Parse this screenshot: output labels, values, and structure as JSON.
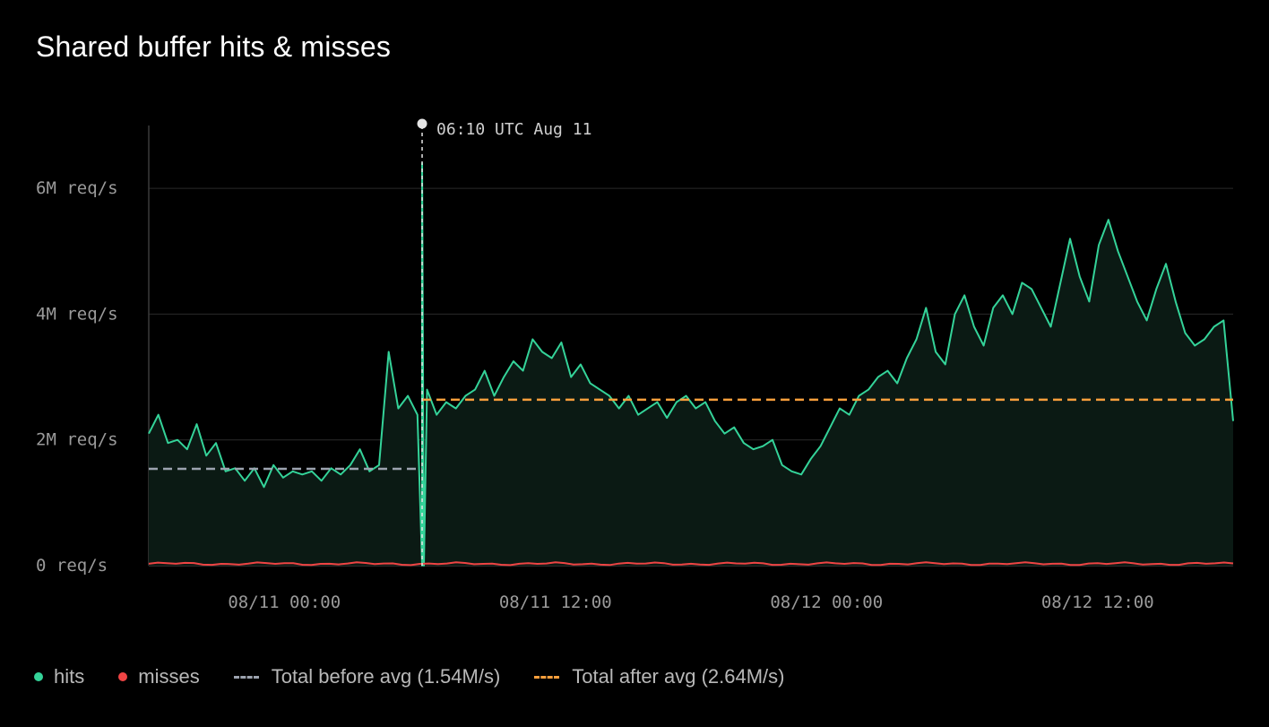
{
  "title": "Shared buffer hits & misses",
  "colors": {
    "background": "#000000",
    "hits": "#34d399",
    "hits_fill": "#0b1a14",
    "misses": "#ef4444",
    "before_avg": "#9ca3af",
    "after_avg": "#fb9f3c",
    "grid": "#2a2a2a",
    "axis_text": "#9a9a9a"
  },
  "legend": {
    "hits": "hits",
    "misses": "misses",
    "before_avg": "Total before avg (1.54M/s)",
    "after_avg": "Total after avg (2.64M/s)"
  },
  "marker": {
    "label": "06:10 UTC Aug 11"
  },
  "chart_data": {
    "type": "area",
    "title": "Shared buffer hits & misses",
    "x_unit": "hours since 08/10 12:00 UTC",
    "x_start": 0,
    "x_end": 48,
    "x_ticks": [
      {
        "x": 6,
        "label": "08/11 00:00"
      },
      {
        "x": 18,
        "label": "08/11 12:00"
      },
      {
        "x": 30,
        "label": "08/12 00:00"
      },
      {
        "x": 42,
        "label": "08/12 12:00"
      }
    ],
    "y_ticks": [
      {
        "y": 0,
        "label": "0 req/s"
      },
      {
        "y": 2000000,
        "label": "2M req/s"
      },
      {
        "y": 4000000,
        "label": "4M req/s"
      },
      {
        "y": 6000000,
        "label": "6M req/s"
      }
    ],
    "ylim": [
      0,
      7000000
    ],
    "marker_x": 12.1,
    "series": [
      {
        "name": "hits",
        "step_hours": 0.5,
        "values_m": [
          2.1,
          2.4,
          1.95,
          2.0,
          1.85,
          2.25,
          1.75,
          1.95,
          1.5,
          1.55,
          1.35,
          1.55,
          1.25,
          1.6,
          1.4,
          1.5,
          1.45,
          1.5,
          1.35,
          1.55,
          1.45,
          1.6,
          1.85,
          1.5,
          1.6,
          3.4,
          2.5,
          2.7,
          2.4,
          2.8,
          2.4,
          2.6,
          2.5,
          2.7,
          2.8,
          3.1,
          2.7,
          3.0,
          3.25,
          3.1,
          3.6,
          3.4,
          3.3,
          3.55,
          3.0,
          3.2,
          2.9,
          2.8,
          2.7,
          2.5,
          2.7,
          2.4,
          2.5,
          2.6,
          2.35,
          2.6,
          2.7,
          2.5,
          2.6,
          2.3,
          2.1,
          2.2,
          1.95,
          1.85,
          1.9,
          2.0,
          1.6,
          1.5,
          1.45,
          1.7,
          1.9,
          2.2,
          2.5,
          2.4,
          2.7,
          2.8,
          3.0,
          3.1,
          2.9,
          3.3,
          3.6,
          4.1,
          3.4,
          3.2,
          4.0,
          4.3,
          3.8,
          3.5,
          4.1,
          4.3,
          4.0,
          4.5,
          4.4,
          4.1,
          3.8,
          4.5,
          5.2,
          4.6,
          4.2,
          5.1,
          5.5,
          5.0,
          4.6,
          4.2,
          3.9,
          4.4,
          4.8,
          4.2,
          3.7,
          3.5,
          3.6,
          3.8,
          3.9,
          2.3
        ]
      },
      {
        "name": "misses",
        "approx_value_m": 0.03
      }
    ],
    "reference_lines": [
      {
        "name": "Total before avg (1.54M/s)",
        "value": 1540000,
        "x_from": 0,
        "x_to": 12.1
      },
      {
        "name": "Total after avg (2.64M/s)",
        "value": 2640000,
        "x_from": 12.1,
        "x_to": 48
      }
    ],
    "grid": true,
    "legend_position": "bottom-left"
  }
}
